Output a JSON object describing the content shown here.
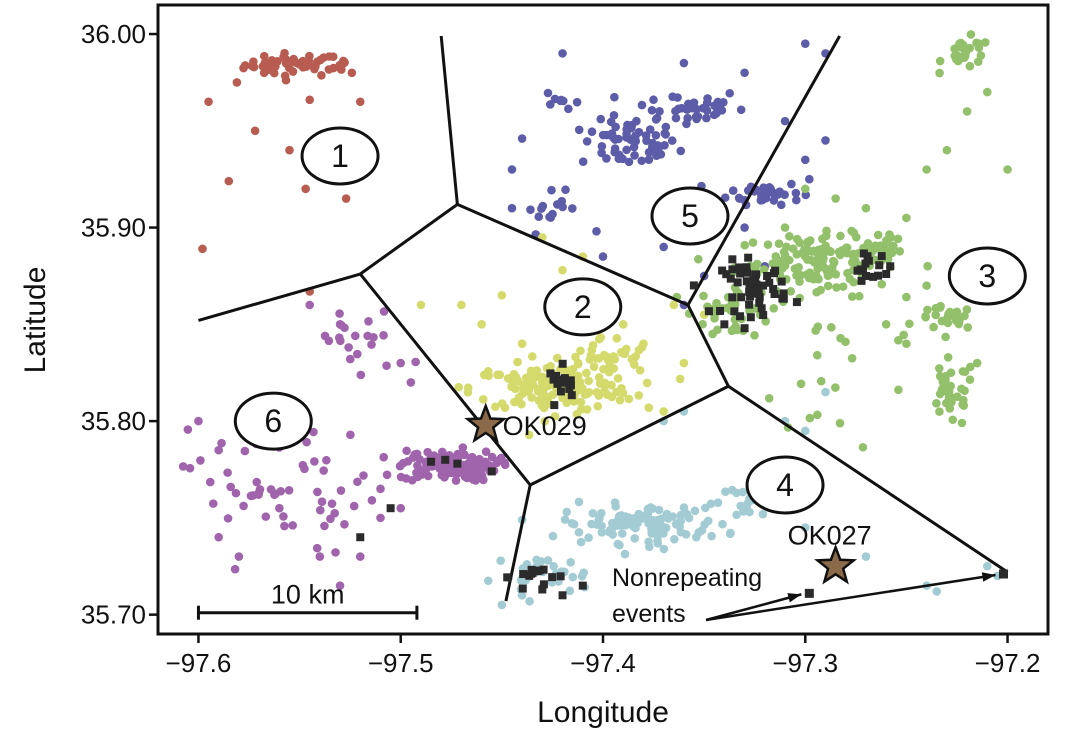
{
  "chart_data": {
    "type": "scatter",
    "xlabel": "Longitude",
    "ylabel": "Latitude",
    "xlim": [
      -97.62,
      -97.18
    ],
    "ylim": [
      35.69,
      36.015
    ],
    "x_ticks": [
      {
        "value": -97.6,
        "label": "−97.6"
      },
      {
        "value": -97.5,
        "label": "−97.5"
      },
      {
        "value": -97.4,
        "label": "−97.4"
      },
      {
        "value": -97.3,
        "label": "−97.3"
      },
      {
        "value": -97.2,
        "label": "−97.2"
      }
    ],
    "y_ticks": [
      {
        "value": 35.7,
        "label": "35.70"
      },
      {
        "value": 35.8,
        "label": "35.80"
      },
      {
        "value": 35.9,
        "label": "35.90"
      },
      {
        "value": 36.0,
        "label": "36.00"
      }
    ],
    "grid": false,
    "series": [
      {
        "id": "1",
        "color": "#b85c52",
        "clusters": [
          {
            "cx": -97.553,
            "cy": 35.984,
            "sx": 0.012,
            "sy": 0.003,
            "n": 45
          },
          {
            "cx": -97.527,
            "cy": 35.984,
            "sx": 0.004,
            "sy": 0.002,
            "n": 8
          }
        ],
        "points": [
          [
            -97.595,
            35.965
          ],
          [
            -97.581,
            35.975
          ],
          [
            -97.585,
            35.924
          ],
          [
            -97.572,
            35.95
          ],
          [
            -97.547,
            35.92
          ],
          [
            -97.527,
            35.915
          ],
          [
            -97.598,
            35.889
          ],
          [
            -97.555,
            35.94
          ],
          [
            -97.52,
            35.965
          ],
          [
            -97.545,
            35.966
          ],
          [
            -97.545,
            35.867
          ]
        ]
      },
      {
        "id": "5",
        "color": "#5d5ca8",
        "clusters": [
          {
            "cx": -97.387,
            "cy": 35.943,
            "sx": 0.012,
            "sy": 0.006,
            "n": 60
          },
          {
            "cx": -97.36,
            "cy": 35.962,
            "sx": 0.015,
            "sy": 0.005,
            "n": 40
          },
          {
            "cx": -97.32,
            "cy": 35.918,
            "sx": 0.009,
            "sy": 0.003,
            "n": 35
          },
          {
            "cx": -97.425,
            "cy": 35.908,
            "sx": 0.008,
            "sy": 0.005,
            "n": 15
          },
          {
            "cx": -97.42,
            "cy": 35.966,
            "sx": 0.004,
            "sy": 0.003,
            "n": 8
          }
        ],
        "points": [
          [
            -97.42,
            35.99
          ],
          [
            -97.36,
            35.985
          ],
          [
            -97.3,
            35.995
          ],
          [
            -97.29,
            35.99
          ],
          [
            -97.33,
            35.98
          ],
          [
            -97.31,
            35.955
          ],
          [
            -97.298,
            35.925
          ],
          [
            -97.4,
            35.885
          ],
          [
            -97.37,
            35.89
          ],
          [
            -97.445,
            35.91
          ],
          [
            -97.445,
            35.93
          ],
          [
            -97.3,
            35.935
          ],
          [
            -97.29,
            35.945
          ],
          [
            -97.35,
            35.875
          ],
          [
            -97.32,
            35.88
          ],
          [
            -97.44,
            35.946
          ],
          [
            -97.33,
            35.9
          ],
          [
            -97.36,
            35.86
          ]
        ]
      },
      {
        "id": "3",
        "color": "#93c06a",
        "clusters": [
          {
            "cx": -97.295,
            "cy": 35.882,
            "sx": 0.02,
            "sy": 0.007,
            "n": 120
          },
          {
            "cx": -97.265,
            "cy": 35.89,
            "sx": 0.007,
            "sy": 0.006,
            "n": 30
          },
          {
            "cx": -97.228,
            "cy": 35.814,
            "sx": 0.006,
            "sy": 0.009,
            "n": 35
          },
          {
            "cx": -97.23,
            "cy": 35.853,
            "sx": 0.007,
            "sy": 0.003,
            "n": 25
          },
          {
            "cx": -97.22,
            "cy": 35.99,
            "sx": 0.006,
            "sy": 0.004,
            "n": 25
          },
          {
            "cx": -97.335,
            "cy": 35.857,
            "sx": 0.01,
            "sy": 0.007,
            "n": 40
          },
          {
            "cx": -97.28,
            "cy": 35.83,
            "sx": 0.02,
            "sy": 0.025,
            "n": 25
          }
        ],
        "points": [
          [
            -97.21,
            35.97
          ],
          [
            -97.23,
            35.94
          ],
          [
            -97.24,
            35.93
          ],
          [
            -97.25,
            35.905
          ],
          [
            -97.27,
            35.91
          ],
          [
            -97.3,
            35.92
          ],
          [
            -97.31,
            35.9
          ],
          [
            -97.22,
            35.96
          ],
          [
            -97.2,
            35.93
          ],
          [
            -97.24,
            35.87
          ],
          [
            -97.215,
            35.83
          ],
          [
            -97.25,
            35.84
          ],
          [
            -97.26,
            35.85
          ],
          [
            -97.285,
            35.915
          ],
          [
            -97.22,
            35.875
          ]
        ]
      },
      {
        "id": "2",
        "color": "#d4da6b",
        "clusters": [
          {
            "cx": -97.425,
            "cy": 35.817,
            "sx": 0.02,
            "sy": 0.006,
            "n": 150
          },
          {
            "cx": -97.4,
            "cy": 35.832,
            "sx": 0.012,
            "sy": 0.006,
            "n": 40
          }
        ],
        "points": [
          [
            -97.47,
            35.86
          ],
          [
            -97.45,
            35.865
          ],
          [
            -97.42,
            35.878
          ],
          [
            -97.4,
            35.87
          ],
          [
            -97.41,
            35.885
          ],
          [
            -97.43,
            35.895
          ],
          [
            -97.39,
            35.85
          ],
          [
            -97.38,
            35.84
          ],
          [
            -97.365,
            35.86
          ],
          [
            -97.35,
            35.855
          ],
          [
            -97.36,
            35.83
          ],
          [
            -97.37,
            35.805
          ],
          [
            -97.49,
            35.86
          ],
          [
            -97.44,
            35.84
          ],
          [
            -97.46,
            35.85
          ]
        ]
      },
      {
        "id": "6",
        "color": "#a064ac",
        "clusters": [
          {
            "cx": -97.477,
            "cy": 35.777,
            "sx": 0.012,
            "sy": 0.004,
            "n": 120
          },
          {
            "cx": -97.575,
            "cy": 35.768,
            "sx": 0.015,
            "sy": 0.02,
            "n": 35
          },
          {
            "cx": -97.535,
            "cy": 35.76,
            "sx": 0.012,
            "sy": 0.018,
            "n": 25
          },
          {
            "cx": -97.52,
            "cy": 35.84,
            "sx": 0.012,
            "sy": 0.01,
            "n": 20
          }
        ],
        "points": [
          [
            -97.545,
            35.86
          ],
          [
            -97.53,
            35.85
          ],
          [
            -97.6,
            35.8
          ],
          [
            -97.59,
            35.785
          ],
          [
            -97.56,
            35.755
          ],
          [
            -97.54,
            35.73
          ],
          [
            -97.53,
            35.715
          ],
          [
            -97.52,
            35.73
          ],
          [
            -97.51,
            35.75
          ],
          [
            -97.5,
            35.755
          ],
          [
            -97.51,
            35.765
          ],
          [
            -97.59,
            35.74
          ],
          [
            -97.58,
            35.73
          ],
          [
            -97.5,
            35.83
          ],
          [
            -97.495,
            35.82
          ]
        ]
      },
      {
        "id": "4",
        "color": "#a3cbd3",
        "clusters": [
          {
            "cx": -97.38,
            "cy": 35.747,
            "sx": 0.02,
            "sy": 0.005,
            "n": 110
          },
          {
            "cx": -97.43,
            "cy": 35.72,
            "sx": 0.012,
            "sy": 0.005,
            "n": 35
          },
          {
            "cx": -97.33,
            "cy": 35.758,
            "sx": 0.008,
            "sy": 0.004,
            "n": 15
          }
        ],
        "points": [
          [
            -97.37,
            35.8
          ],
          [
            -97.36,
            35.805
          ],
          [
            -97.3,
            35.795
          ],
          [
            -97.31,
            35.8
          ],
          [
            -97.29,
            35.815
          ],
          [
            -97.205,
            35.72
          ],
          [
            -97.21,
            35.725
          ],
          [
            -97.24,
            35.715
          ],
          [
            -97.235,
            35.712
          ],
          [
            -97.3,
            35.745
          ],
          [
            -97.45,
            35.705
          ],
          [
            -97.44,
            35.71
          ],
          [
            -97.27,
            35.73
          ]
        ]
      }
    ],
    "repeating_events": {
      "color": "#2b2b2b",
      "marker": "square",
      "clusters": [
        {
          "cx": -97.325,
          "cy": 35.869,
          "sx": 0.008,
          "sy": 0.007,
          "n": 50
        },
        {
          "cx": -97.268,
          "cy": 35.879,
          "sx": 0.005,
          "sy": 0.004,
          "n": 12
        },
        {
          "cx": -97.419,
          "cy": 35.82,
          "sx": 0.004,
          "sy": 0.004,
          "n": 14
        },
        {
          "cx": -97.433,
          "cy": 35.72,
          "sx": 0.006,
          "sy": 0.003,
          "n": 14
        }
      ],
      "points": [
        [
          -97.412,
          35.87
        ],
        [
          -97.41,
          35.864
        ],
        [
          -97.485,
          35.779
        ],
        [
          -97.478,
          35.78
        ],
        [
          -97.472,
          35.778
        ],
        [
          -97.455,
          35.774
        ],
        [
          -97.505,
          35.755
        ],
        [
          -97.52,
          35.74
        ],
        [
          -97.34,
          35.85
        ],
        [
          -97.33,
          35.848
        ],
        [
          -97.27,
          35.875
        ],
        [
          -97.26,
          35.876
        ],
        [
          -97.258,
          35.88
        ],
        [
          -97.42,
          35.71
        ],
        [
          -97.41,
          35.715
        ],
        [
          -97.43,
          35.713
        ]
      ]
    },
    "nonrepeating_events": [
      [
        -97.298,
        35.711
      ],
      [
        -97.202,
        35.721
      ]
    ],
    "stations": [
      {
        "name": "OK029",
        "x": -97.458,
        "y": 35.798,
        "color": "#8b6a4a"
      },
      {
        "name": "OK027",
        "x": -97.285,
        "y": 35.725,
        "color": "#8b6a4a"
      }
    ],
    "voronoi_edges": [
      [
        [
          -97.48,
          35.999
        ],
        [
          -97.472,
          35.912
        ]
      ],
      [
        [
          -97.472,
          35.912
        ],
        [
          -97.52,
          35.876
        ]
      ],
      [
        [
          -97.52,
          35.876
        ],
        [
          -97.6,
          35.852
        ]
      ],
      [
        [
          -97.472,
          35.912
        ],
        [
          -97.358,
          35.86
        ]
      ],
      [
        [
          -97.358,
          35.86
        ],
        [
          -97.283,
          35.999
        ]
      ],
      [
        [
          -97.358,
          35.86
        ],
        [
          -97.338,
          35.818
        ]
      ],
      [
        [
          -97.338,
          35.818
        ],
        [
          -97.436,
          35.767
        ]
      ],
      [
        [
          -97.436,
          35.767
        ],
        [
          -97.52,
          35.876
        ]
      ],
      [
        [
          -97.436,
          35.767
        ],
        [
          -97.448,
          35.707
        ]
      ],
      [
        [
          -97.338,
          35.818
        ],
        [
          -97.2,
          35.722
        ]
      ]
    ],
    "region_labels": [
      {
        "text": "1",
        "x": -97.53,
        "y": 35.937
      },
      {
        "text": "2",
        "x": -97.41,
        "y": 35.859
      },
      {
        "text": "3",
        "x": -97.21,
        "y": 35.875
      },
      {
        "text": "4",
        "x": -97.31,
        "y": 35.767
      },
      {
        "text": "5",
        "x": -97.357,
        "y": 35.906
      },
      {
        "text": "6",
        "x": -97.563,
        "y": 35.8
      }
    ],
    "annotations": {
      "nonrepeating_label": [
        "Nonrepeating",
        "events"
      ],
      "scale_bar": {
        "label": "10 km",
        "x0": -97.6,
        "x1": -97.492,
        "y": 35.701
      }
    }
  }
}
